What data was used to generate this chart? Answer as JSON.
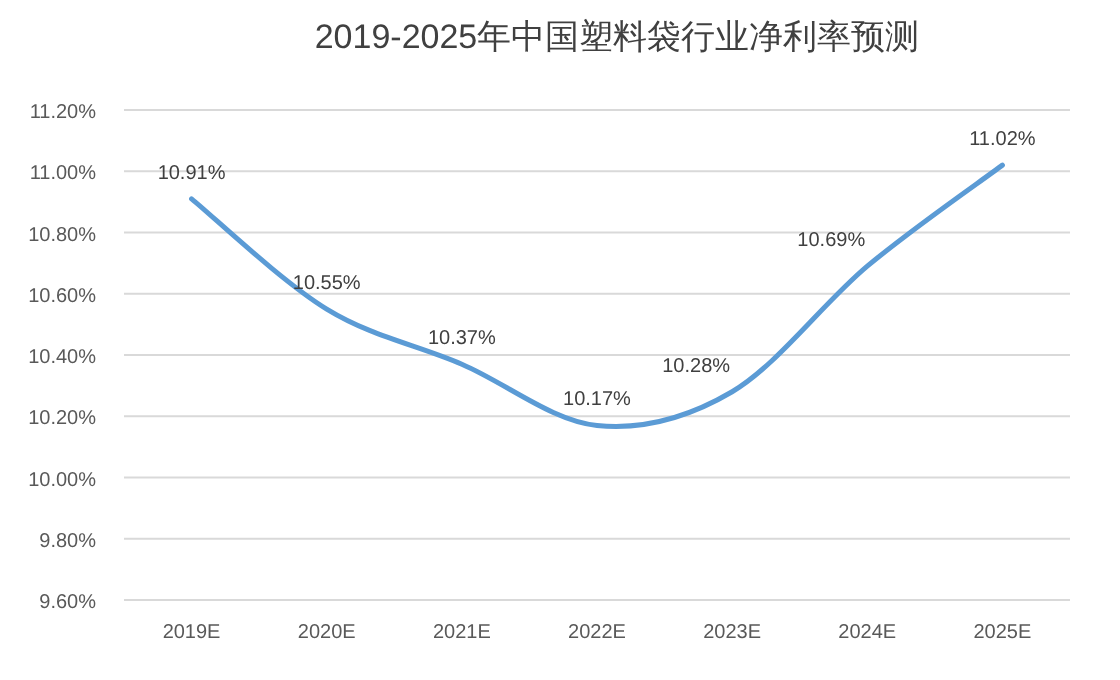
{
  "chart_data": {
    "type": "line",
    "title": "2019-2025年中国塑料袋行业净利率预测",
    "categories": [
      "2019E",
      "2020E",
      "2021E",
      "2022E",
      "2023E",
      "2024E",
      "2025E"
    ],
    "series": [
      {
        "color": "#5b9bd5",
        "values": [
          10.91,
          10.55,
          10.37,
          10.17,
          10.28,
          10.69,
          11.02
        ],
        "value_labels": [
          "10.91%",
          "10.55%",
          "10.37%",
          "10.17%",
          "10.28%",
          "10.69%",
          "11.02%"
        ]
      }
    ],
    "ylim": [
      9.6,
      11.2
    ],
    "yticks": [
      {
        "value": 9.6,
        "label": "9.60%"
      },
      {
        "value": 9.8,
        "label": "9.80%"
      },
      {
        "value": 10.0,
        "label": "10.00%"
      },
      {
        "value": 10.2,
        "label": "10.20%"
      },
      {
        "value": 10.4,
        "label": "10.40%"
      },
      {
        "value": 10.6,
        "label": "10.60%"
      },
      {
        "value": 10.8,
        "label": "10.80%"
      },
      {
        "value": 11.0,
        "label": "11.00%"
      },
      {
        "value": 11.2,
        "label": "11.20%"
      }
    ],
    "grid": "y",
    "marker": "none",
    "line_style": "solid"
  }
}
